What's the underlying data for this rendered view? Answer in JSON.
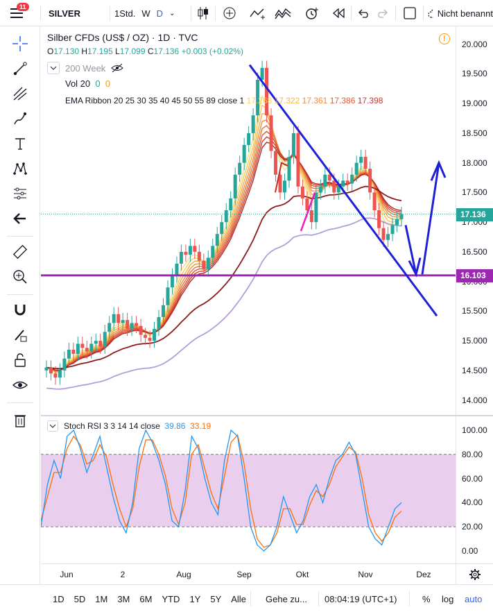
{
  "toolbar": {
    "badge": "11",
    "symbol": "SILVER",
    "interval": "1Std.",
    "interval_w": "W",
    "interval_d": "D",
    "chart_type_icon": "candles-icon",
    "save_label": "Nicht benannt"
  },
  "legend": {
    "title": "Silber CFDs (US$ / OZ) · 1D · TVC",
    "open_label": "O",
    "open": "17.130",
    "high_label": "H",
    "high": "17.195",
    "low_label": "L",
    "low": "17.099",
    "close_label": "C",
    "close": "17.136",
    "change": "+0.003 (+0.02%)",
    "ma_label": "200 Week",
    "vol_label": "Vol 20",
    "vol_v1": "0",
    "vol_v2": "0",
    "ema_label": "EMA Ribbon 20 25 30 35 40 45 50 55 89 close 1",
    "ema_values": [
      "17.268",
      "17.322",
      "17.361",
      "17.386",
      "17.398"
    ]
  },
  "price_axis": {
    "labels": [
      "20.000",
      "19.500",
      "19.000",
      "18.500",
      "18.000",
      "17.500",
      "17.000",
      "16.500",
      "16.000",
      "15.500",
      "15.000",
      "14.500",
      "14.000"
    ],
    "current_price": "17.136",
    "level_price": "16.103",
    "current_color": "#26a69a",
    "level_color": "#9c27b0"
  },
  "rsi": {
    "label": "Stoch RSI 3 3 14 14 close",
    "k": "39.86",
    "d": "33.19",
    "k_color": "#2196f3",
    "d_color": "#ff6d00",
    "axis_labels": [
      "100.00",
      "80.00",
      "60.00",
      "40.00",
      "20.00",
      "0.00"
    ]
  },
  "time_axis": {
    "labels": [
      "Jun",
      "2",
      "Aug",
      "Sep",
      "Okt",
      "Nov",
      "Dez"
    ]
  },
  "bottom": {
    "ranges": [
      "1D",
      "5D",
      "1M",
      "3M",
      "6M",
      "YTD",
      "1Y",
      "5Y",
      "Alle"
    ],
    "goto": "Gehe zu...",
    "time": "08:04:19 (UTC+1)",
    "pct": "%",
    "log": "log",
    "auto": "auto"
  },
  "chart_data": {
    "type": "candlestick",
    "y_range": [
      13.75,
      20.3
    ],
    "closes": [
      14.55,
      14.45,
      14.38,
      14.5,
      14.7,
      14.85,
      14.78,
      14.95,
      14.88,
      14.82,
      14.95,
      15.0,
      14.9,
      15.15,
      15.3,
      15.45,
      15.3,
      15.35,
      15.2,
      15.3,
      15.25,
      15.1,
      15.05,
      15.0,
      15.2,
      15.4,
      15.6,
      15.9,
      16.1,
      16.3,
      16.5,
      16.45,
      16.6,
      16.5,
      16.35,
      16.2,
      16.4,
      16.6,
      16.8,
      17.0,
      17.2,
      17.4,
      17.8,
      18.0,
      18.3,
      18.5,
      18.8,
      19.4,
      19.6,
      18.8,
      18.2,
      17.8,
      17.5,
      17.7,
      18.1,
      18.5,
      17.6,
      17.4,
      17.2,
      17.0,
      17.5,
      17.6,
      17.8,
      17.7,
      17.5,
      17.6,
      17.7,
      17.65,
      17.8,
      18.0,
      18.1,
      17.9,
      17.5,
      17.2,
      16.9,
      16.7,
      16.8,
      16.95,
      17.05,
      17.136
    ],
    "level": 16.103,
    "rsi_k": [
      20,
      55,
      75,
      60,
      95,
      100,
      85,
      65,
      80,
      95,
      70,
      45,
      25,
      15,
      40,
      85,
      100,
      90,
      75,
      55,
      25,
      20,
      50,
      95,
      85,
      60,
      40,
      30,
      75,
      100,
      95,
      60,
      20,
      5,
      0,
      5,
      20,
      45,
      30,
      15,
      25,
      45,
      55,
      40,
      60,
      75,
      80,
      90,
      80,
      50,
      20,
      10,
      5,
      20,
      35,
      40
    ],
    "rsi_d": [
      25,
      45,
      65,
      65,
      85,
      95,
      88,
      72,
      75,
      88,
      78,
      55,
      35,
      20,
      35,
      70,
      92,
      92,
      80,
      62,
      35,
      22,
      40,
      80,
      88,
      68,
      48,
      35,
      62,
      90,
      96,
      72,
      35,
      10,
      3,
      5,
      15,
      35,
      35,
      22,
      22,
      38,
      50,
      45,
      55,
      70,
      78,
      86,
      82,
      60,
      30,
      15,
      8,
      15,
      28,
      33
    ]
  }
}
